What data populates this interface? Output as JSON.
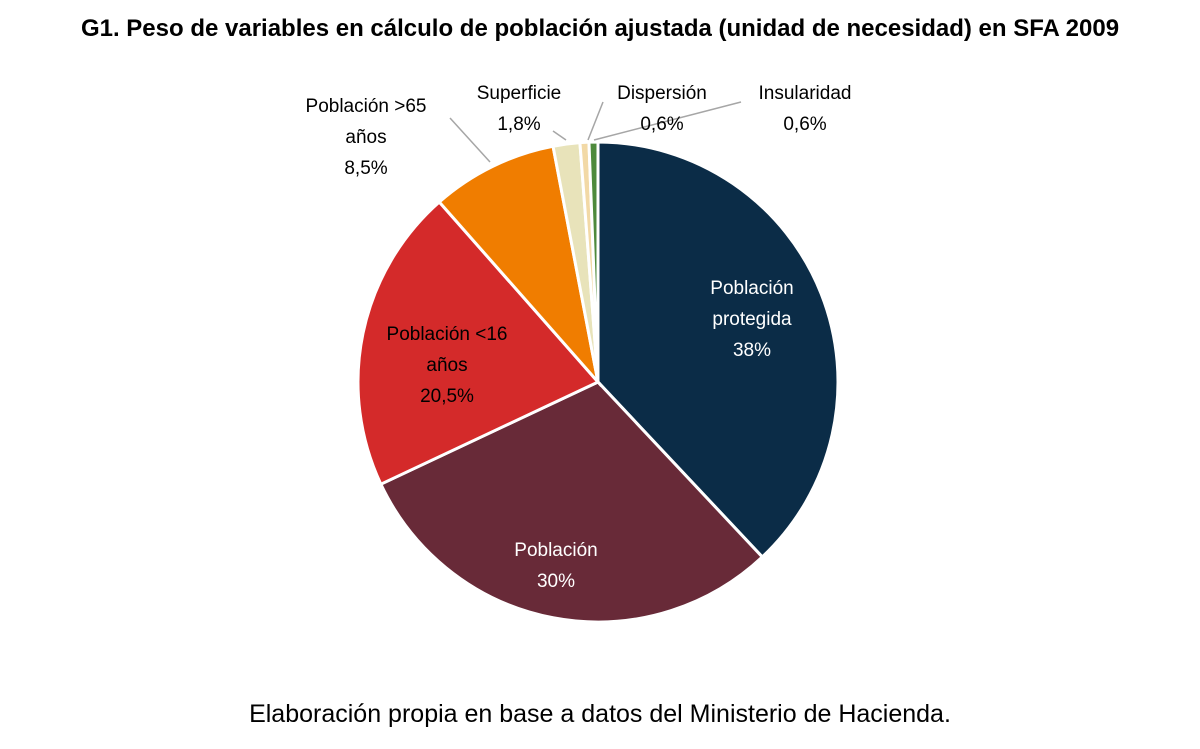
{
  "title": "G1. Peso de variables en cálculo de población ajustada (unidad de necesidad) en SFA 2009",
  "source": "Elaboración propia en base a datos del Ministerio de Hacienda.",
  "chart_data": {
    "type": "pie",
    "title": "G1. Peso de variables en cálculo de población ajustada (unidad de necesidad) en SFA 2009",
    "legend": "none",
    "slices": [
      {
        "label": "Población protegida",
        "label_lines": [
          "Población",
          "protegida"
        ],
        "value": 38,
        "value_label": "38%",
        "color": "#0b2c47"
      },
      {
        "label": "Población",
        "label_lines": [
          "Población"
        ],
        "value": 30,
        "value_label": "30%",
        "color": "#682a38"
      },
      {
        "label": "Población <16 años",
        "label_lines": [
          "Población <16",
          "años"
        ],
        "value": 20.5,
        "value_label": "20,5%",
        "color": "#d42a2a"
      },
      {
        "label": "Población >65 años",
        "label_lines": [
          "Población >65",
          "años"
        ],
        "value": 8.5,
        "value_label": "8,5%",
        "color": "#f07d00"
      },
      {
        "label": "Superficie",
        "label_lines": [
          "Superficie"
        ],
        "value": 1.8,
        "value_label": "1,8%",
        "color": "#e8e3ba"
      },
      {
        "label": "Dispersión",
        "label_lines": [
          "Dispersión"
        ],
        "value": 0.6,
        "value_label": "0,6%",
        "color": "#f2d9a6"
      },
      {
        "label": "Insularidad",
        "label_lines": [
          "Insularidad"
        ],
        "value": 0.6,
        "value_label": "0,6%",
        "color": "#4e8a3c"
      }
    ]
  }
}
